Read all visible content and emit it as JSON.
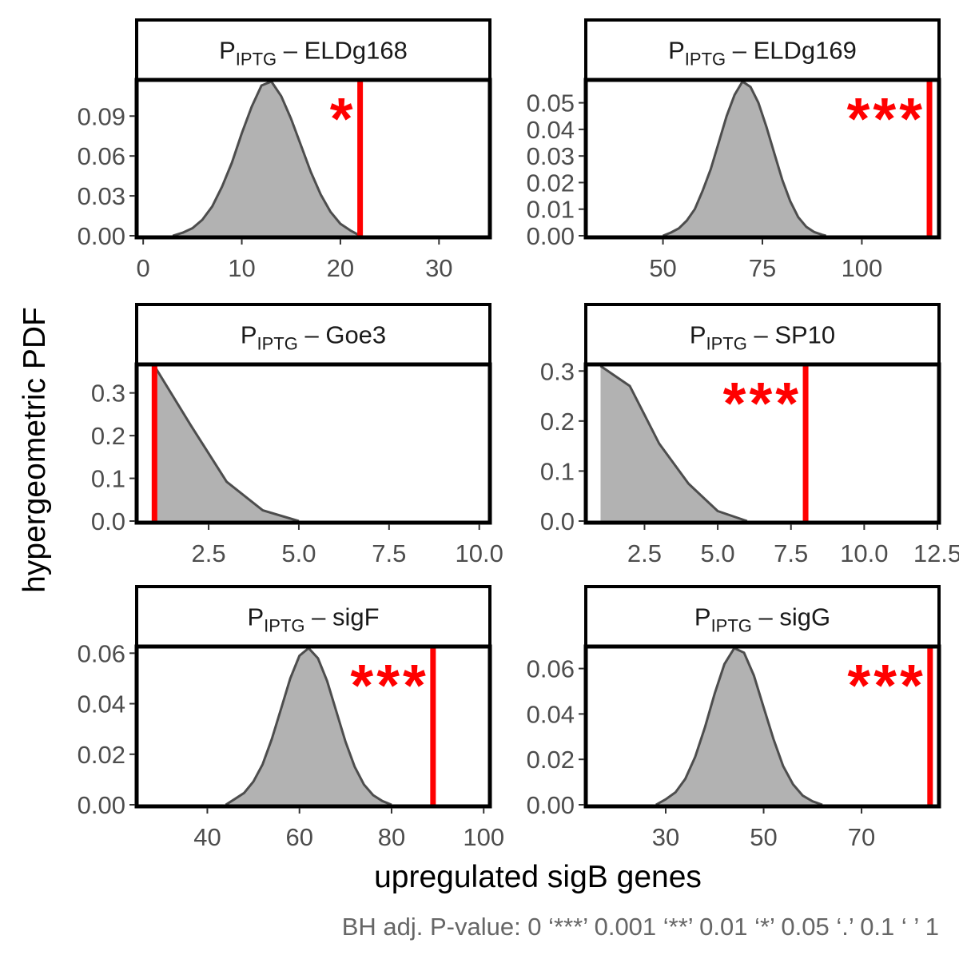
{
  "figure": {
    "ylabel": "hypergeometric PDF",
    "xlabel": "upregulated sigB genes",
    "caption": "BH adj. P-value: 0 ‘***’ 0.001 ‘**’ 0.01 ‘*’ 0.05 ‘.’ 0.1 ‘ ’ 1"
  },
  "colors": {
    "fill": "#b2b2b2",
    "outline": "#4d4d4d",
    "observed": "#ff0000",
    "strip_border": "#000000",
    "tick_text": "#4d4d4d"
  },
  "chart_data": [
    {
      "type": "area",
      "strip_prefix": "P",
      "strip_sub": "IPTG",
      "strip_suffix": "– ELDg168",
      "xlim": [
        -0.5,
        35
      ],
      "ylim": [
        0,
        0.116
      ],
      "xticks": [
        0,
        10,
        20,
        30
      ],
      "yticks": [
        0.0,
        0.03,
        0.06,
        0.09
      ],
      "ytick_labels": [
        "0.00",
        "0.03",
        "0.06",
        "0.09"
      ],
      "observed": 22,
      "significance": "*",
      "x": [
        3,
        4,
        5,
        6,
        7,
        8,
        9,
        10,
        11,
        12,
        13,
        14,
        15,
        16,
        17,
        18,
        19,
        20,
        21,
        22
      ],
      "y": [
        0.0,
        0.0023,
        0.0057,
        0.012,
        0.022,
        0.037,
        0.055,
        0.077,
        0.097,
        0.113,
        0.116,
        0.105,
        0.088,
        0.068,
        0.048,
        0.031,
        0.018,
        0.009,
        0.004,
        0.0
      ]
    },
    {
      "type": "area",
      "strip_prefix": "P",
      "strip_sub": "IPTG",
      "strip_suffix": "– ELDg169",
      "xlim": [
        31,
        119
      ],
      "ylim": [
        0,
        0.058
      ],
      "xticks": [
        50,
        75,
        100
      ],
      "yticks": [
        0.0,
        0.01,
        0.02,
        0.03,
        0.04,
        0.05
      ],
      "ytick_labels": [
        "0.00",
        "0.01",
        "0.02",
        "0.03",
        "0.04",
        "0.05"
      ],
      "observed": 117,
      "significance": "***",
      "x": [
        50,
        52,
        54,
        56,
        58,
        60,
        62,
        64,
        66,
        68,
        70,
        72,
        74,
        76,
        78,
        80,
        82,
        84,
        86,
        88,
        90,
        91
      ],
      "y": [
        0.0,
        0.0012,
        0.0028,
        0.0057,
        0.01,
        0.017,
        0.025,
        0.035,
        0.045,
        0.053,
        0.058,
        0.056,
        0.05,
        0.041,
        0.031,
        0.021,
        0.013,
        0.007,
        0.0034,
        0.0014,
        0.0004,
        0.0
      ]
    },
    {
      "type": "area",
      "strip_prefix": "P",
      "strip_sub": "IPTG",
      "strip_suffix": "– Goe3",
      "xlim": [
        0.55,
        10.25
      ],
      "ylim": [
        0,
        0.363
      ],
      "xticks": [
        2.5,
        5.0,
        7.5,
        10.0
      ],
      "xtick_labels": [
        "2.5",
        "5.0",
        "7.5",
        "10.0"
      ],
      "yticks": [
        0.0,
        0.1,
        0.2,
        0.3
      ],
      "ytick_labels": [
        "0.0",
        "0.1",
        "0.2",
        "0.3"
      ],
      "observed": 1,
      "significance": "",
      "x": [
        1,
        2,
        3,
        4,
        5
      ],
      "y": [
        0.363,
        0.225,
        0.092,
        0.025,
        0.0
      ]
    },
    {
      "type": "area",
      "strip_prefix": "P",
      "strip_sub": "IPTG",
      "strip_suffix": "– SP10",
      "xlim": [
        0.55,
        12.5
      ],
      "ylim": [
        0,
        0.31
      ],
      "xticks": [
        2.5,
        5.0,
        7.5,
        10.0,
        12.5
      ],
      "xtick_labels": [
        "2.5",
        "5.0",
        "7.5",
        "10.0",
        "12.5"
      ],
      "yticks": [
        0.0,
        0.1,
        0.2,
        0.3
      ],
      "ytick_labels": [
        "0.0",
        "0.1",
        "0.2",
        "0.3"
      ],
      "observed": 8,
      "significance": "***",
      "x": [
        1,
        2,
        3,
        4,
        5,
        6
      ],
      "y": [
        0.31,
        0.27,
        0.155,
        0.075,
        0.02,
        0.0
      ]
    },
    {
      "type": "area",
      "strip_prefix": "P",
      "strip_sub": "IPTG",
      "strip_suffix": "– sigF",
      "xlim": [
        25,
        101
      ],
      "ylim": [
        0,
        0.062
      ],
      "xticks": [
        40,
        60,
        80,
        100
      ],
      "yticks": [
        0.0,
        0.02,
        0.04,
        0.06
      ],
      "ytick_labels": [
        "0.00",
        "0.02",
        "0.04",
        "0.06"
      ],
      "observed": 89,
      "significance": "***",
      "x": [
        44,
        46,
        48,
        50,
        52,
        54,
        56,
        58,
        60,
        62,
        64,
        66,
        68,
        70,
        72,
        74,
        76,
        78,
        80
      ],
      "y": [
        0.0,
        0.0023,
        0.0047,
        0.0092,
        0.016,
        0.026,
        0.038,
        0.05,
        0.059,
        0.062,
        0.058,
        0.049,
        0.037,
        0.025,
        0.015,
        0.008,
        0.0038,
        0.0015,
        0.0
      ]
    },
    {
      "type": "area",
      "strip_prefix": "P",
      "strip_sub": "IPTG",
      "strip_suffix": "– sigG",
      "xlim": [
        14,
        85.5
      ],
      "ylim": [
        0,
        0.069
      ],
      "xticks": [
        30,
        50,
        70
      ],
      "yticks": [
        0.0,
        0.02,
        0.04,
        0.06
      ],
      "ytick_labels": [
        "0.00",
        "0.02",
        "0.04",
        "0.06"
      ],
      "observed": 84,
      "significance": "***",
      "x": [
        28,
        30,
        32,
        34,
        36,
        38,
        40,
        42,
        44,
        46,
        48,
        50,
        52,
        54,
        56,
        58,
        60,
        62
      ],
      "y": [
        0.0,
        0.0024,
        0.0055,
        0.0114,
        0.021,
        0.034,
        0.049,
        0.062,
        0.069,
        0.067,
        0.057,
        0.043,
        0.029,
        0.017,
        0.009,
        0.004,
        0.0015,
        0.0
      ]
    }
  ]
}
